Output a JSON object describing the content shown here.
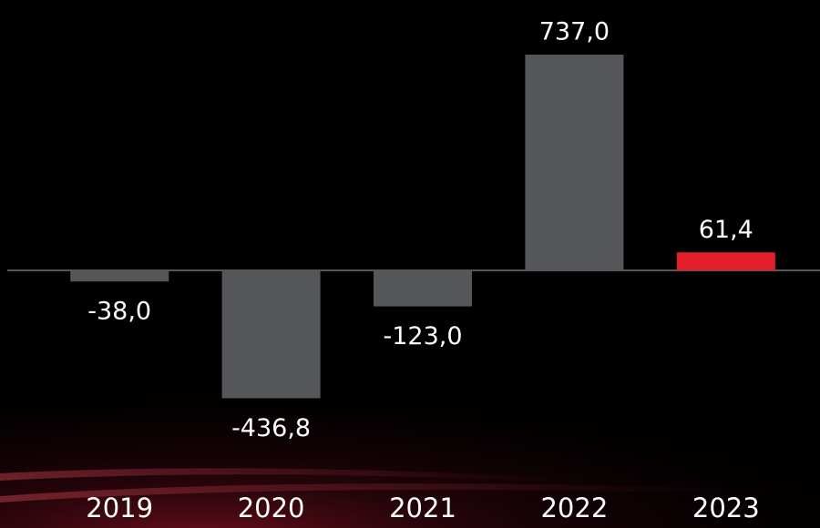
{
  "chart_data": {
    "type": "bar",
    "categories": [
      "2019",
      "2020",
      "2021",
      "2022",
      "2023"
    ],
    "values": [
      -38.0,
      -436.8,
      -123.0,
      737.0,
      61.4
    ],
    "value_labels": [
      "-38,0",
      "-436,8",
      "-123,0",
      "737,0",
      "61,4"
    ],
    "colors": [
      "#55565a",
      "#55565a",
      "#55565a",
      "#55565a",
      "#e3202a"
    ]
  }
}
